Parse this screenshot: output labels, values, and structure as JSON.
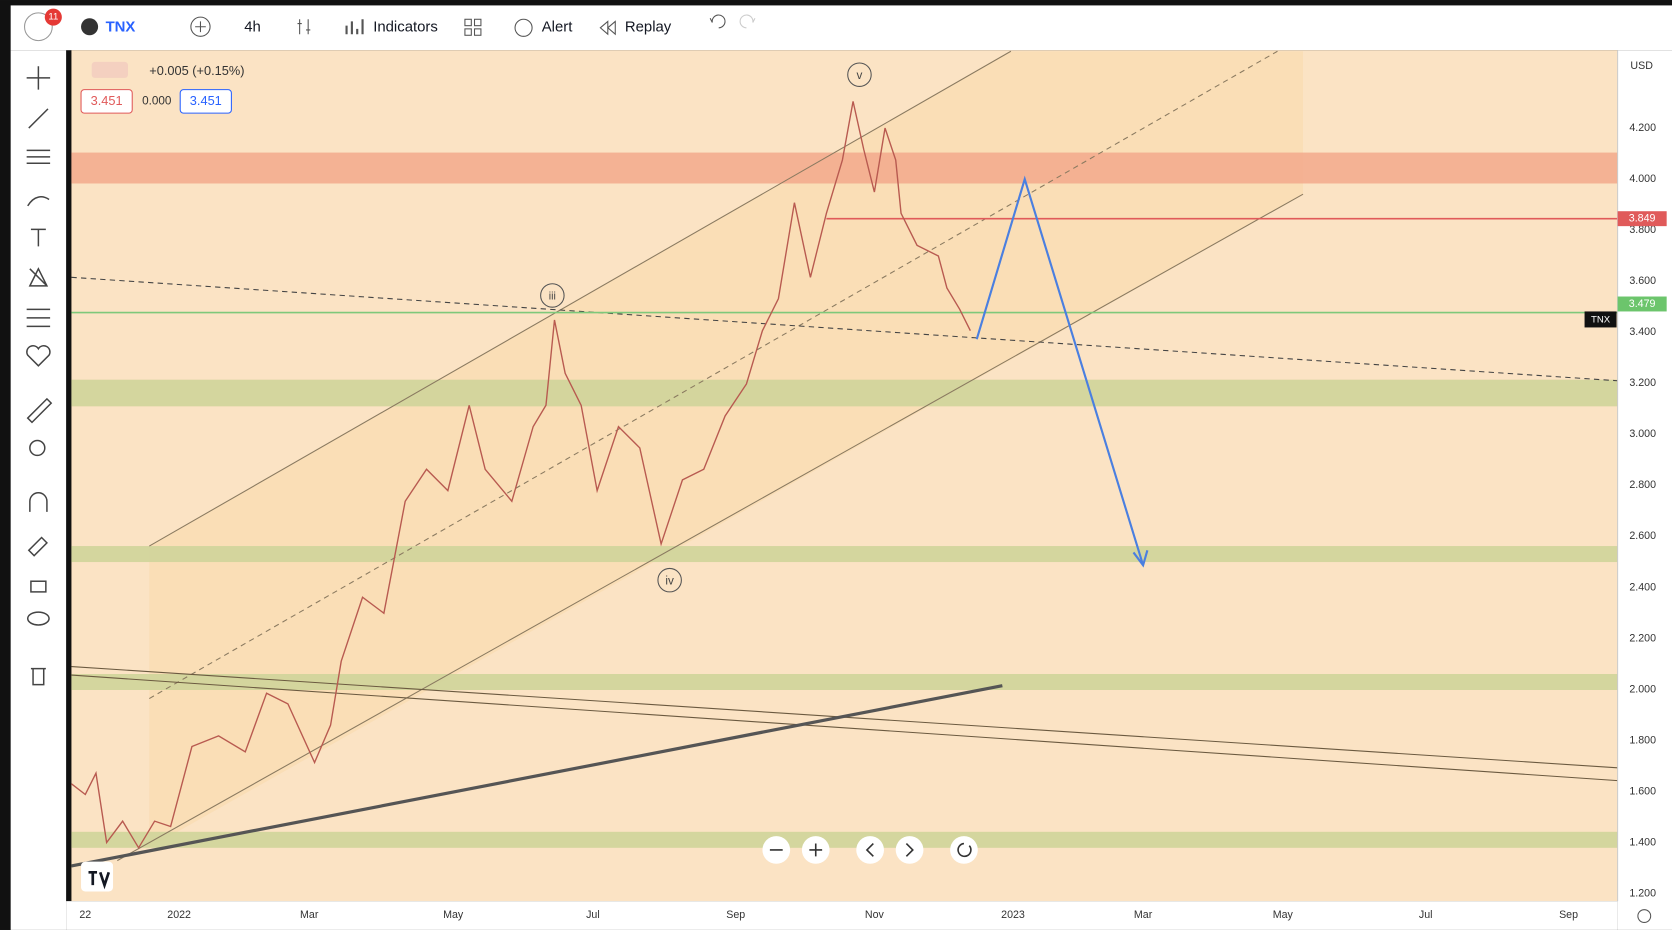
{
  "toolbar": {
    "badge": "11",
    "symbol": "TNX",
    "interval": "4h",
    "indicators": "Indicators",
    "alert": "Alert",
    "replay": "Replay"
  },
  "legend": {
    "change": "+0.005 (+0.15%)",
    "bid": "3.451",
    "spread": "0.000",
    "ask": "3.451"
  },
  "price_axis": {
    "currency": "USD",
    "labels": [
      "4.200",
      "4.000",
      "3.800",
      "3.600",
      "3.400",
      "3.200",
      "3.000",
      "2.800",
      "2.600",
      "2.400",
      "2.200",
      "2.000",
      "1.800",
      "1.600",
      "1.400",
      "1.200"
    ],
    "level_badge": "3.849",
    "last_badge": "3.479",
    "symbol_tag": "TNX"
  },
  "time_axis": {
    "labels": [
      "22",
      "2022",
      "Mar",
      "May",
      "Jul",
      "Sep",
      "Nov",
      "2023",
      "Mar",
      "May",
      "Jul",
      "Sep"
    ]
  },
  "waves": [
    "v",
    "iii",
    "iv"
  ]
}
